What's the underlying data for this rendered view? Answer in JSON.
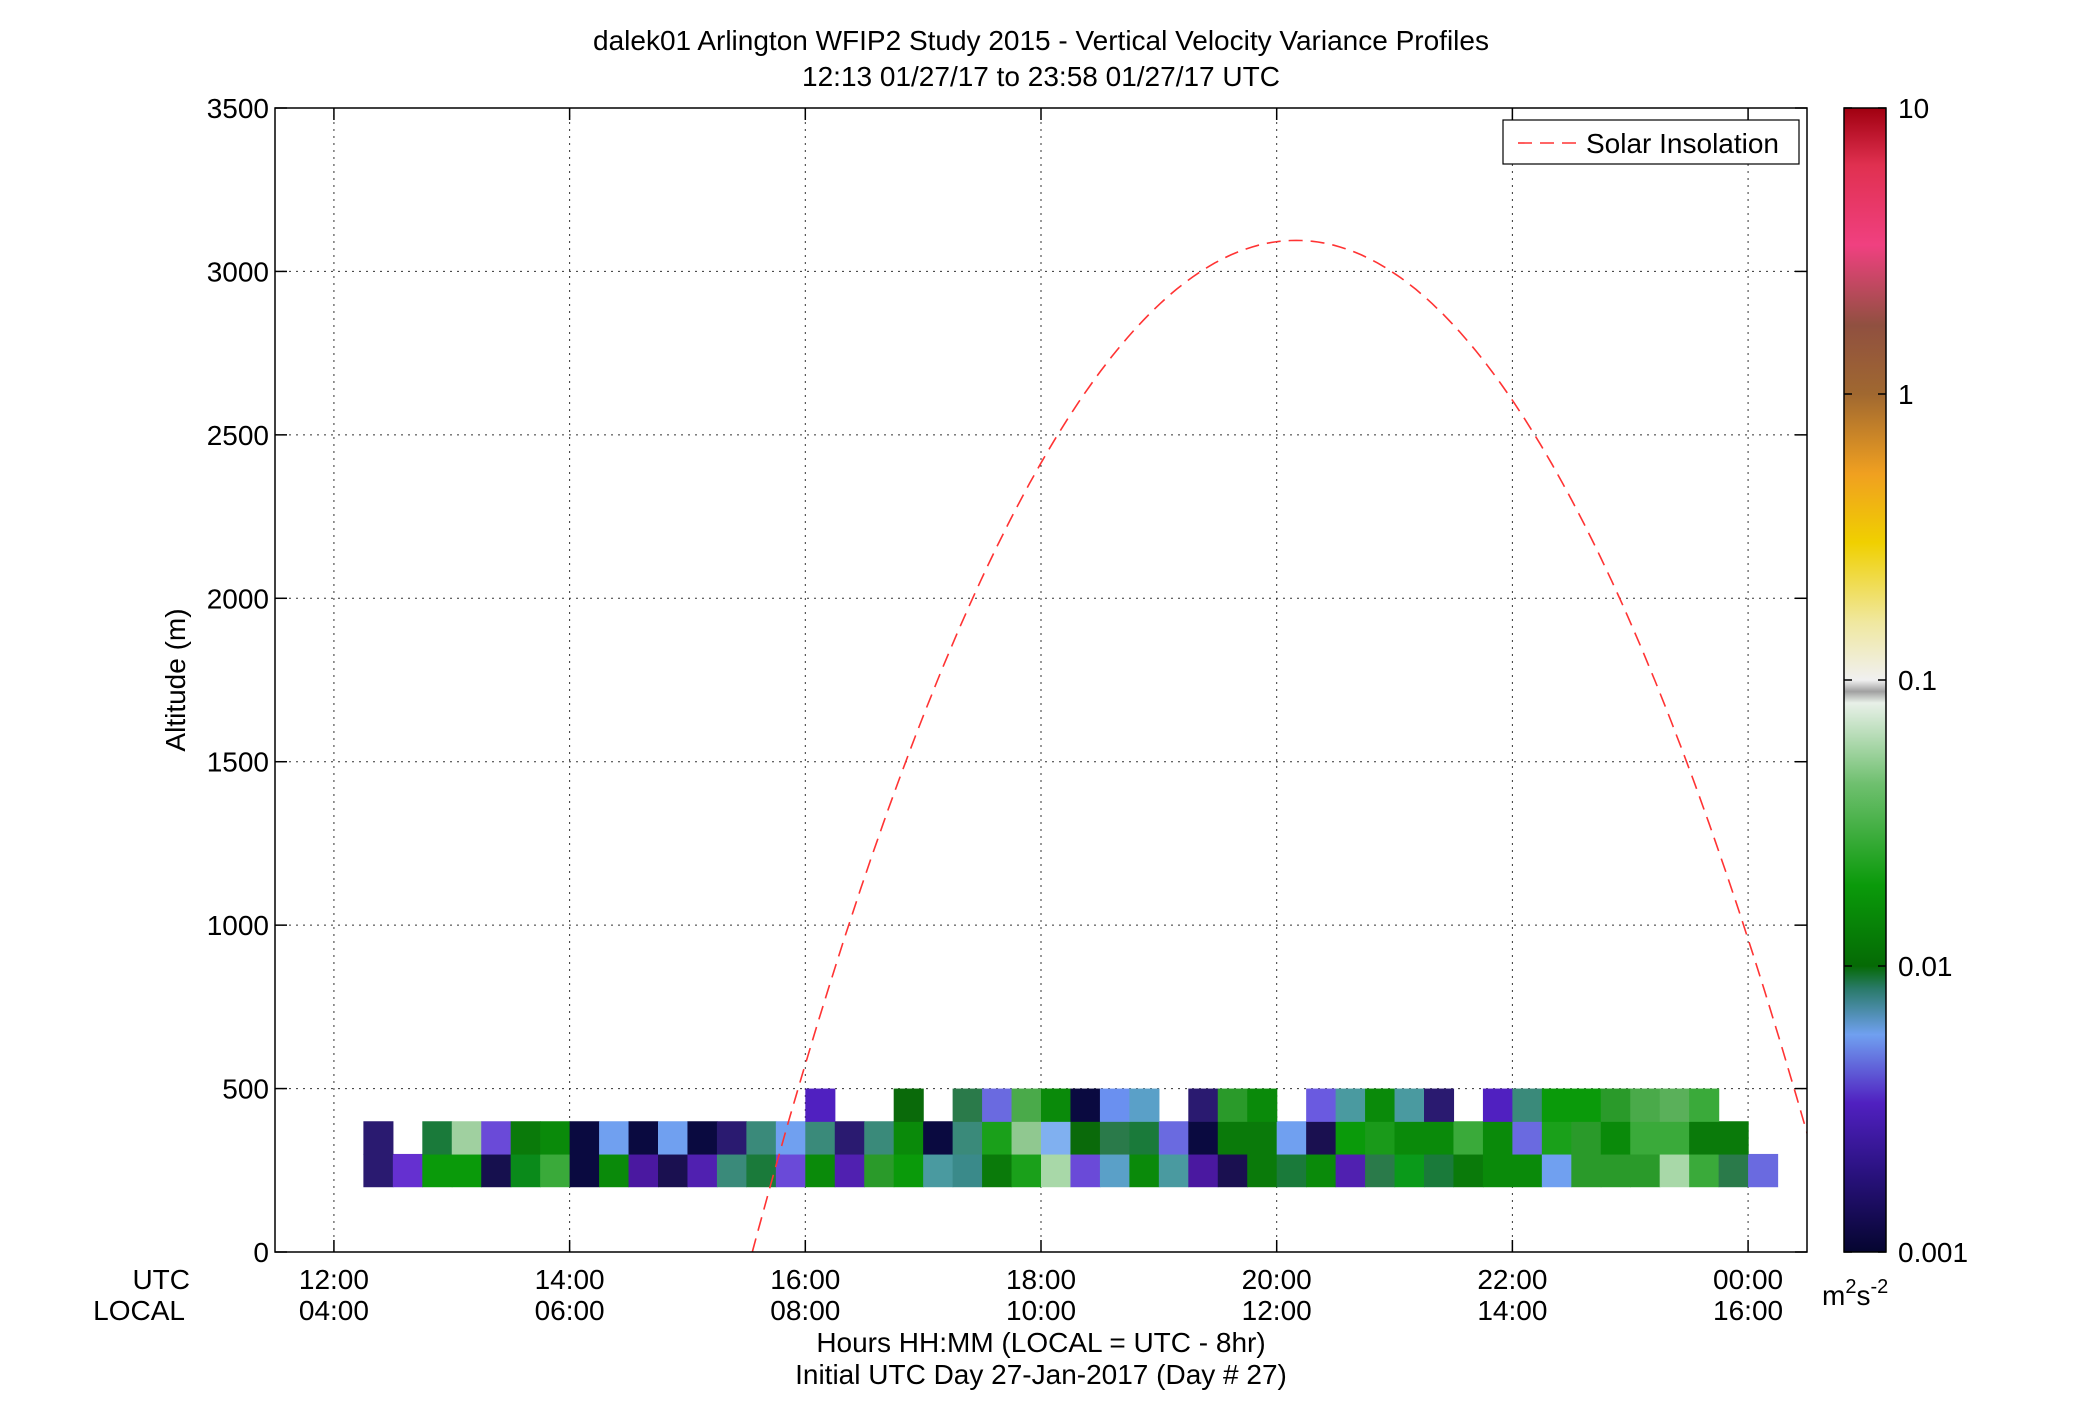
{
  "chart_data": {
    "type": "heatmap",
    "title": "dalek01 Arlington WFIP2 Study 2015 - Vertical Velocity Variance Profiles",
    "subtitle": "12:13 01/27/17 to 23:58 01/27/17  UTC",
    "ylabel": "Altitude (m)",
    "xlabel": "Hours HH:MM  (LOCAL = UTC - 8hr)",
    "xlabel2": "Initial UTC Day 27-Jan-2017 (Day # 27)",
    "xaxis_row_labels": {
      "utc": "UTC",
      "local": "LOCAL"
    },
    "xlim_hours": [
      11.5,
      24.5
    ],
    "ylim": [
      0,
      3500
    ],
    "grid": true,
    "x_ticks": [
      {
        "hour": 12,
        "utc": "12:00",
        "local": "04:00"
      },
      {
        "hour": 14,
        "utc": "14:00",
        "local": "06:00"
      },
      {
        "hour": 16,
        "utc": "16:00",
        "local": "08:00"
      },
      {
        "hour": 18,
        "utc": "18:00",
        "local": "10:00"
      },
      {
        "hour": 20,
        "utc": "20:00",
        "local": "12:00"
      },
      {
        "hour": 22,
        "utc": "22:00",
        "local": "14:00"
      },
      {
        "hour": 24,
        "utc": "00:00",
        "local": "16:00"
      }
    ],
    "y_ticks": [
      0,
      500,
      1000,
      1500,
      2000,
      2500,
      3000,
      3500
    ],
    "colorbar": {
      "scale": "log",
      "range": [
        0.001,
        10
      ],
      "ticks": [
        "0.001",
        "0.01",
        "0.1",
        "1",
        "10"
      ],
      "unit_base": "m",
      "unit_exp1": "2",
      "unit_mid": "s",
      "unit_exp2": "-2"
    },
    "legend": {
      "label": "Solar Insolation",
      "color": "#ff3333",
      "location": "top-right"
    },
    "solar_insolation_curve": {
      "peak_hour": 20.17,
      "peak_altitude": 3095,
      "zero_crossings_hours": [
        15.55,
        24.78
      ]
    },
    "heatmap": {
      "start_hour": 12.25,
      "bin_hours": 0.25,
      "altitude_bins": [
        {
          "bottom": 200,
          "top": 300
        },
        {
          "bottom": 300,
          "top": 400
        },
        {
          "bottom": 400,
          "top": 500
        }
      ],
      "colors_by_row": [
        [
          "#2a1a70",
          "#6530d0",
          "#0a9a0a",
          "#0a9a0a",
          "#16104e",
          "#0a8a1a",
          "#3aaa3a",
          "#0a0a40",
          "#0a8a0a",
          "#4a18a0",
          "#1a1050",
          "#5020b0",
          "#3a8a7a",
          "#1a7a3a",
          "#6a4ad8",
          "#0a8a0a",
          "#5020b0",
          "#2a9a2a",
          "#0a9a0a",
          "#4a9aa0",
          "#3a8a8a",
          "#0a7a0a",
          "#1aa01a",
          "#a8d8a8",
          "#6a4ad8",
          "#5aa0c8",
          "#0a8a0a",
          "#4a9aa0",
          "#4a18a0",
          "#1a1050",
          "#0a7a0a",
          "#1a7a3a",
          "#0a8a0a",
          "#5020b0",
          "#2a7a4a",
          "#0a9a1a",
          "#1a7a3a",
          "#0a7a0a",
          "#0a8a0a",
          "#0a8a0a",
          "#70a0f0",
          "#2a9a2a",
          "#2a9a2a",
          "#2a9a2a",
          "#a8d8a8",
          "#3aaa3a",
          "#2a7a4a",
          "#6a6ae0"
        ],
        [
          "#2a1a70",
          null,
          "#1a7a3a",
          "#a0d0a0",
          "#6a4ad8",
          "#0a7a0a",
          "#0a8a0a",
          "#0a0a40",
          "#70a0f0",
          "#0a0a40",
          "#70a0f0",
          "#0a0a40",
          "#2a1a70",
          "#3a8a7a",
          "#70a0f0",
          "#3a8a7a",
          "#2a1a70",
          "#3a8a7a",
          "#0a8a0a",
          "#0a0a40",
          "#3a8a7a",
          "#1aa01a",
          "#90c890",
          "#80b0f0",
          "#0a6a0a",
          "#2a7a4a",
          "#1a7a3a",
          "#6a6ae0",
          "#0a0a40",
          "#0a7a0a",
          "#0a7a0a",
          "#70a0f0",
          "#1a1050",
          "#0a9a0a",
          "#1a9a1a",
          "#0a8a0a",
          "#0a8a0a",
          "#3aaa3a",
          "#0a8a0a",
          "#6a6ae0",
          "#1aa01a",
          "#2a9a2a",
          "#0a8a0a",
          "#3aaa3a",
          "#3aaa3a",
          "#0a7a0a",
          "#0a7a0a",
          null
        ],
        [
          null,
          null,
          null,
          null,
          null,
          null,
          null,
          null,
          null,
          null,
          null,
          null,
          null,
          null,
          null,
          "#5020c0",
          null,
          null,
          "#0a6a0a",
          null,
          "#2a7a4a",
          "#6a6ae0",
          "#4aaa4a",
          "#0a8a0a",
          "#0a0a40",
          "#6a90f0",
          "#5aa0c8",
          null,
          "#2a1a70",
          "#2a9a2a",
          "#0a8a0a",
          null,
          "#6a5ae0",
          "#4a9aa0",
          "#0a8a0a",
          "#4a9aa0",
          "#2a1a70",
          null,
          "#5020c0",
          "#3a8a7a",
          "#0a9a0a",
          "#0a9a0a",
          "#2a9a2a",
          "#4aaa4a",
          "#5ab05a",
          "#3aaa3a",
          null,
          null
        ]
      ]
    }
  }
}
